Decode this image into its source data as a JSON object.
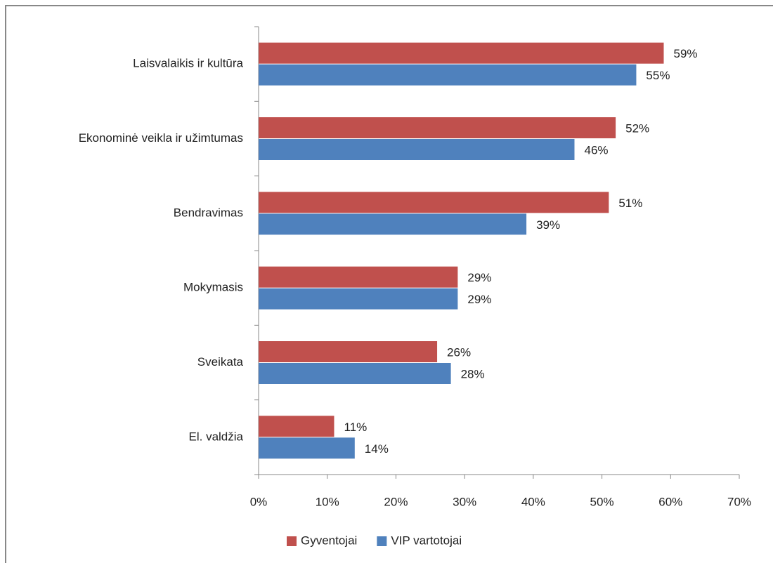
{
  "chart_data": {
    "type": "bar",
    "orientation": "horizontal",
    "categories": [
      "Laisvalaikis ir kultūra",
      "Ekonominė veikla ir užimtumas",
      "Bendravimas",
      "Mokymasis",
      "Sveikata",
      "El. valdžia"
    ],
    "series": [
      {
        "name": "Gyventojai",
        "color": "#c0504d",
        "values": [
          59,
          52,
          51,
          29,
          26,
          11
        ],
        "value_labels": [
          "59%",
          "52%",
          "51%",
          "29%",
          "26%",
          "11%"
        ]
      },
      {
        "name": "VIP vartotojai",
        "color": "#4f81bd",
        "values": [
          55,
          46,
          39,
          29,
          28,
          14
        ],
        "value_labels": [
          "55%",
          "46%",
          "39%",
          "29%",
          "28%",
          "14%"
        ]
      }
    ],
    "xlim": [
      0,
      70
    ],
    "xticks": [
      {
        "value": 0,
        "label": "0%"
      },
      {
        "value": 10,
        "label": "10%"
      },
      {
        "value": 20,
        "label": "20%"
      },
      {
        "value": 30,
        "label": "30%"
      },
      {
        "value": 40,
        "label": "40%"
      },
      {
        "value": 50,
        "label": "50%"
      },
      {
        "value": 60,
        "label": "60%"
      },
      {
        "value": 70,
        "label": "70%"
      }
    ],
    "grid": false,
    "legend": "bottom"
  }
}
